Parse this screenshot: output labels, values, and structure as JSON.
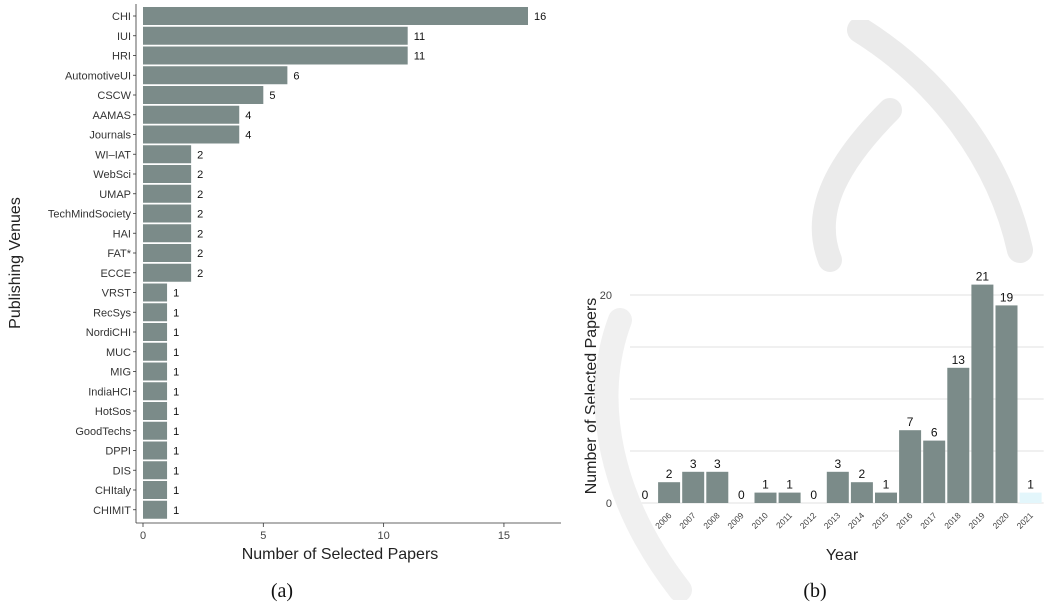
{
  "chart_data": [
    {
      "type": "bar",
      "orientation": "horizontal",
      "caption": "(a)",
      "xlabel": "Number of Selected Papers",
      "ylabel": "Publishing Venues",
      "xlim": [
        0,
        16
      ],
      "xticks": [
        0,
        5,
        10,
        15
      ],
      "grid": false,
      "bar_color": "#7b8b89",
      "categories": [
        "CHI",
        "IUI",
        "HRI",
        "AutomotiveUI",
        "CSCW",
        "AAMAS",
        "Journals",
        "WI–IAT",
        "WebSci",
        "UMAP",
        "TechMindSociety",
        "HAI",
        "FAT*",
        "ECCE",
        "VRST",
        "RecSys",
        "NordiCHI",
        "MUC",
        "MIG",
        "IndiaHCI",
        "HotSos",
        "GoodTechs",
        "DPPI",
        "DIS",
        "CHItaly",
        "CHIMIT"
      ],
      "values": [
        16,
        11,
        11,
        6,
        5,
        4,
        4,
        2,
        2,
        2,
        2,
        2,
        2,
        2,
        1,
        1,
        1,
        1,
        1,
        1,
        1,
        1,
        1,
        1,
        1,
        1
      ]
    },
    {
      "type": "bar",
      "caption": "(b)",
      "xlabel": "Year",
      "ylabel": "Number of Selected Papers",
      "ylim": [
        0,
        22
      ],
      "yticks": [
        0,
        5,
        10,
        15,
        20
      ],
      "grid": true,
      "bar_color": "#7b8b89",
      "highlight_color": "#e3f6fb",
      "categories": [
        "2005",
        "2006",
        "2007",
        "2008",
        "2009",
        "2010",
        "2011",
        "2012",
        "2013",
        "2014",
        "2015",
        "2016",
        "2017",
        "2018",
        "2019",
        "2020",
        "2021"
      ],
      "values": [
        0,
        2,
        3,
        3,
        0,
        1,
        1,
        0,
        3,
        2,
        1,
        7,
        6,
        13,
        21,
        19,
        1
      ],
      "highlighted": [
        "2021"
      ]
    }
  ]
}
